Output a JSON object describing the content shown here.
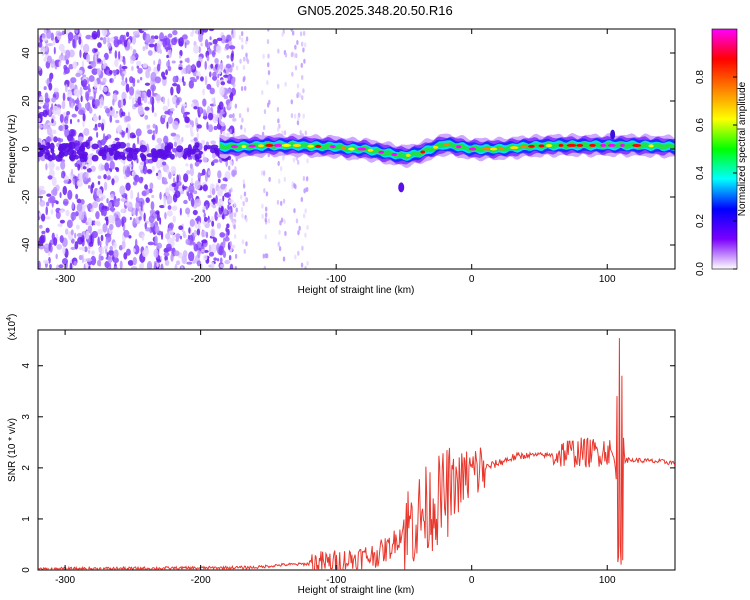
{
  "title": "GN05.2025.348.20.50.R16",
  "chart_data": [
    {
      "type": "heatmap",
      "xlabel": "Height of straight line (km)",
      "ylabel": "Frequency (Hz)",
      "xlim": [
        -320,
        150
      ],
      "ylim": [
        -50,
        50
      ],
      "xticks": [
        -300,
        -200,
        -100,
        0,
        100
      ],
      "yticks": [
        -40,
        -20,
        0,
        20,
        40
      ],
      "colorbar": {
        "label": "Normalized spectral amplitude",
        "range": [
          0,
          1
        ],
        "ticks": [
          0.0,
          0.2,
          0.4,
          0.6,
          0.8
        ],
        "colormap": [
          "#ffffff",
          "#7a00ff",
          "#0000ff",
          "#00ffff",
          "#00ff00",
          "#ffff00",
          "#ff8000",
          "#ff0000",
          "#ff00ff"
        ]
      },
      "ridge_center": [
        [
          -185,
          1
        ],
        [
          -170,
          1
        ],
        [
          -150,
          1.5
        ],
        [
          -130,
          1.5
        ],
        [
          -110,
          1
        ],
        [
          -100,
          1
        ],
        [
          -90,
          0
        ],
        [
          -80,
          0
        ],
        [
          -70,
          -1
        ],
        [
          -60,
          -2
        ],
        [
          -50,
          -3
        ],
        [
          -40,
          -2
        ],
        [
          -30,
          0
        ],
        [
          -20,
          2
        ],
        [
          -10,
          1
        ],
        [
          0,
          0
        ],
        [
          20,
          0
        ],
        [
          40,
          1
        ],
        [
          60,
          1.5
        ],
        [
          80,
          1.5
        ],
        [
          100,
          1.5
        ],
        [
          120,
          1.5
        ],
        [
          150,
          1
        ]
      ],
      "noise_region": [
        -320,
        -180
      ]
    },
    {
      "type": "line",
      "xlabel": "Height of straight line (km)",
      "ylabel": "SNR (10 * v/v)",
      "scale_label": "(x10",
      "scale_exp": "4",
      "scale_close": ")",
      "xlim": [
        -320,
        150
      ],
      "ylim": [
        0,
        4.7
      ],
      "xticks": [
        -300,
        -200,
        -100,
        0,
        100
      ],
      "yticks": [
        0,
        1,
        2,
        3,
        4
      ],
      "color": "#e8382e",
      "series": [
        {
          "x": [
            -320,
            -250,
            -200,
            -160,
            -140,
            -120,
            -100,
            -90,
            -80,
            -70,
            -60,
            -50,
            -40,
            -30,
            -25,
            -20,
            -15,
            -10,
            -5,
            0,
            10,
            20,
            30,
            40,
            50,
            60,
            70,
            80,
            90,
            100,
            105,
            108,
            110,
            113,
            120,
            140,
            150
          ],
          "y": [
            0.02,
            0.03,
            0.04,
            0.05,
            0.1,
            0.12,
            0.15,
            0.2,
            0.25,
            0.3,
            0.45,
            0.8,
            1.0,
            1.25,
            1.35,
            1.45,
            1.6,
            1.7,
            1.8,
            1.9,
            2.0,
            2.1,
            2.2,
            2.25,
            2.25,
            2.25,
            2.3,
            2.3,
            2.3,
            2.35,
            2.2,
            1.5,
            3.5,
            2.15,
            2.15,
            2.12,
            2.1
          ]
        }
      ]
    }
  ]
}
